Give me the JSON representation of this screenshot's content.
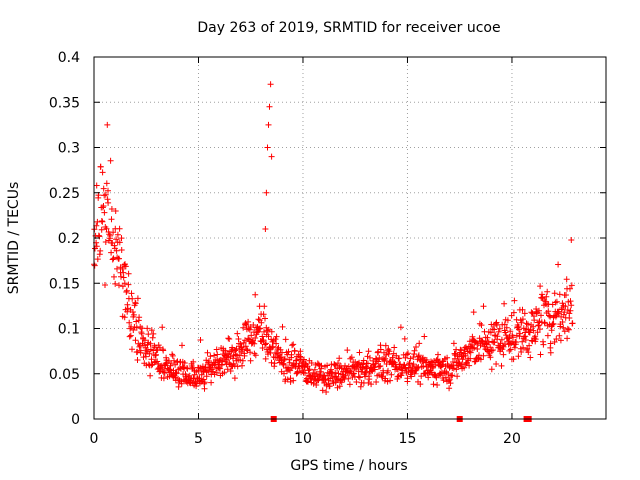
{
  "chart_data": {
    "type": "scatter",
    "title": "Day 263 of 2019, SRMTID for receiver ucoe",
    "xlabel": "GPS time / hours",
    "ylabel": "SRMTID / TECUs",
    "xlim": [
      0,
      24.5
    ],
    "ylim": [
      0,
      0.4
    ],
    "grid": true,
    "legend": "none",
    "marker": "+",
    "color": "#ff0000",
    "x_ticks": [
      0,
      5,
      10,
      15,
      20
    ],
    "x_tick_labels": [
      "0",
      "5",
      "10",
      "15",
      "20"
    ],
    "y_ticks": [
      0,
      0.05,
      0.1,
      0.15,
      0.2,
      0.25,
      0.3,
      0.35,
      0.4
    ],
    "y_tick_labels": [
      "0",
      "0.05",
      "0.1",
      "0.15",
      "0.2",
      "0.25",
      "0.3",
      "0.35",
      "0.4"
    ],
    "trend": {
      "x": [
        0,
        0.5,
        1,
        1.5,
        2,
        2.5,
        3,
        4,
        5,
        6,
        7,
        8,
        9,
        10,
        11,
        12,
        13,
        14,
        15,
        16,
        17,
        18,
        19,
        20,
        21,
        22,
        23
      ],
      "y": [
        0.2,
        0.23,
        0.19,
        0.15,
        0.11,
        0.08,
        0.065,
        0.05,
        0.05,
        0.06,
        0.075,
        0.1,
        0.065,
        0.055,
        0.045,
        0.05,
        0.055,
        0.06,
        0.06,
        0.055,
        0.055,
        0.075,
        0.085,
        0.09,
        0.1,
        0.115,
        0.13
      ]
    },
    "spike": {
      "x": [
        8.2,
        8.25,
        8.3,
        8.35,
        8.4,
        8.45,
        8.5
      ],
      "y": [
        0.21,
        0.25,
        0.3,
        0.325,
        0.345,
        0.37,
        0.29
      ]
    },
    "markers_on_axis": [
      8.6,
      17.5,
      20.7,
      20.8
    ]
  }
}
